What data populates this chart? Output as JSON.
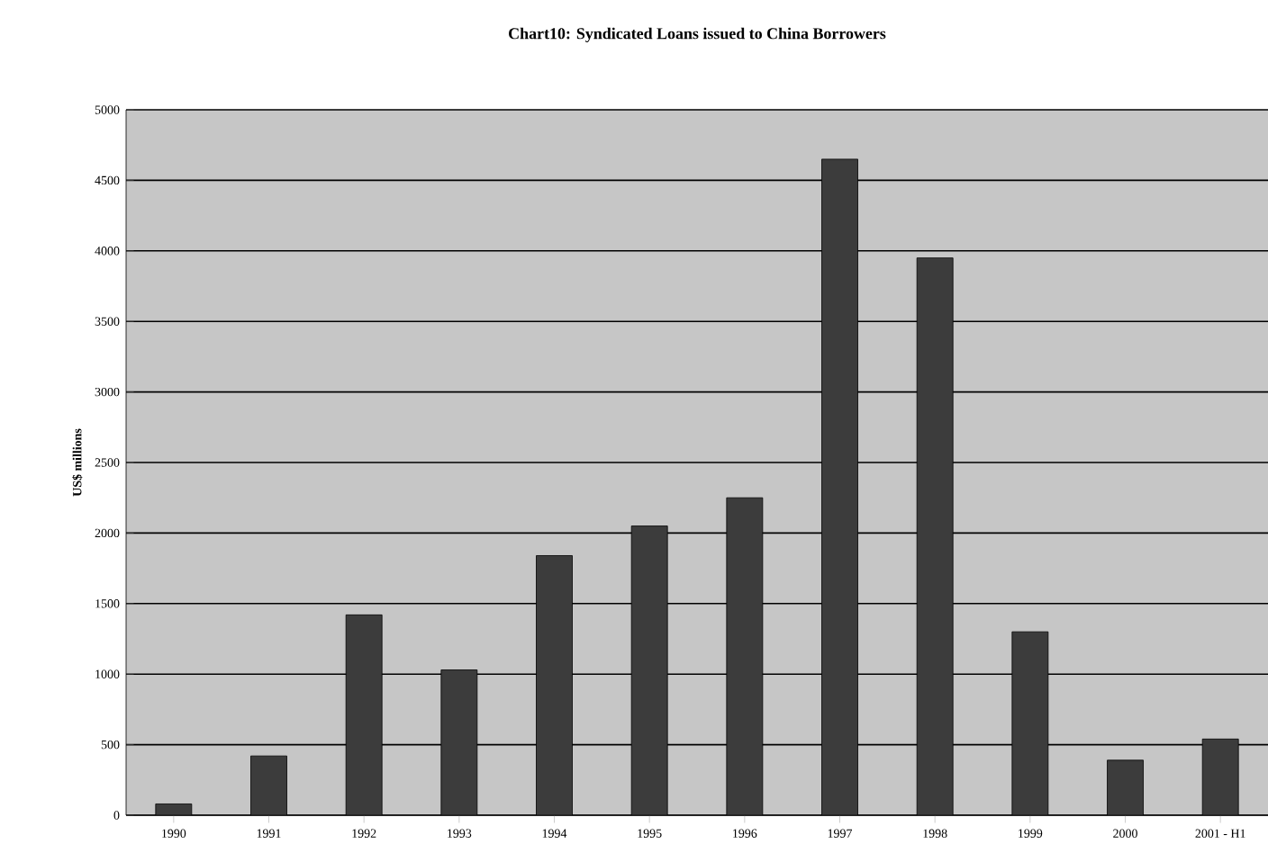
{
  "chart_data": {
    "type": "bar",
    "title": "Chart10: Syndicated Loans issued to China Borrowers",
    "ylabel": "US$ millions",
    "categories": [
      "1990",
      "1991",
      "1992",
      "1993",
      "1994",
      "1995",
      "1996",
      "1997",
      "1998",
      "1999",
      "2000",
      "2001 - H1"
    ],
    "values": [
      80,
      420,
      1420,
      1030,
      1840,
      2050,
      2250,
      4650,
      3950,
      1300,
      390,
      540
    ],
    "color": "#3c3c3c",
    "ylim": [
      0,
      5000
    ],
    "yticks": [
      0,
      500,
      1000,
      1500,
      2000,
      2500,
      3000,
      3500,
      4000,
      4500,
      5000
    ],
    "grid": "y"
  }
}
